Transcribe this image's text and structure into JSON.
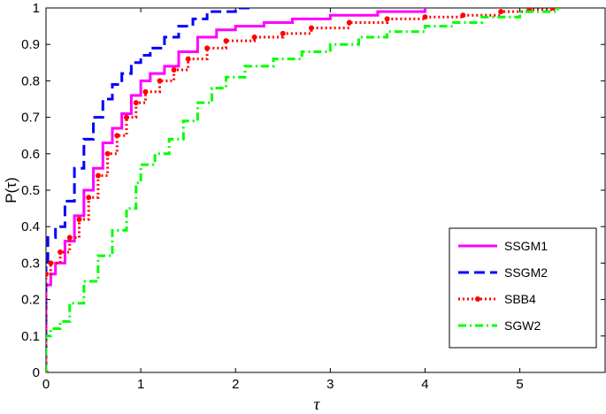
{
  "chart_data": {
    "type": "line",
    "title": "",
    "xlabel": "τ",
    "ylabel": "P(τ)",
    "xlim": [
      0,
      5.9
    ],
    "ylim": [
      0,
      1
    ],
    "xticks": [
      "0",
      "1",
      "2",
      "3",
      "4",
      "5"
    ],
    "yticks": [
      "0",
      "0.1",
      "0.2",
      "0.3",
      "0.4",
      "0.5",
      "0.6",
      "0.7",
      "0.8",
      "0.9",
      "1"
    ],
    "grid": false,
    "legend_position": "bottom-right",
    "series": [
      {
        "name": "SSGM1",
        "color": "#ff00ff",
        "style": "solid",
        "points": [
          [
            0,
            0
          ],
          [
            0,
            0.24
          ],
          [
            0.05,
            0.27
          ],
          [
            0.1,
            0.3
          ],
          [
            0.2,
            0.36
          ],
          [
            0.3,
            0.43
          ],
          [
            0.4,
            0.5
          ],
          [
            0.5,
            0.56
          ],
          [
            0.6,
            0.63
          ],
          [
            0.7,
            0.67
          ],
          [
            0.8,
            0.71
          ],
          [
            0.9,
            0.76
          ],
          [
            1.0,
            0.8
          ],
          [
            1.1,
            0.82
          ],
          [
            1.25,
            0.84
          ],
          [
            1.4,
            0.88
          ],
          [
            1.6,
            0.92
          ],
          [
            1.8,
            0.94
          ],
          [
            2.0,
            0.95
          ],
          [
            2.3,
            0.96
          ],
          [
            2.6,
            0.97
          ],
          [
            3.0,
            0.98
          ],
          [
            3.5,
            0.99
          ],
          [
            4.0,
            1.0
          ]
        ]
      },
      {
        "name": "SSGM2",
        "color": "#0000ff",
        "style": "dashed",
        "points": [
          [
            0,
            0
          ],
          [
            0,
            0.3
          ],
          [
            0.02,
            0.37
          ],
          [
            0.1,
            0.4
          ],
          [
            0.2,
            0.47
          ],
          [
            0.3,
            0.56
          ],
          [
            0.4,
            0.64
          ],
          [
            0.5,
            0.7
          ],
          [
            0.6,
            0.75
          ],
          [
            0.7,
            0.79
          ],
          [
            0.8,
            0.82
          ],
          [
            0.9,
            0.85
          ],
          [
            1.0,
            0.87
          ],
          [
            1.1,
            0.89
          ],
          [
            1.25,
            0.92
          ],
          [
            1.4,
            0.95
          ],
          [
            1.55,
            0.97
          ],
          [
            1.7,
            0.99
          ],
          [
            2.0,
            1.0
          ],
          [
            2.15,
            1.0
          ]
        ]
      },
      {
        "name": "SBB4",
        "color": "#ff0000",
        "style": "dotted-markers",
        "points": [
          [
            0,
            0
          ],
          [
            0,
            0.27
          ],
          [
            0.05,
            0.3
          ],
          [
            0.15,
            0.33
          ],
          [
            0.25,
            0.37
          ],
          [
            0.35,
            0.42
          ],
          [
            0.45,
            0.48
          ],
          [
            0.55,
            0.54
          ],
          [
            0.65,
            0.6
          ],
          [
            0.75,
            0.65
          ],
          [
            0.85,
            0.7
          ],
          [
            0.95,
            0.74
          ],
          [
            1.05,
            0.77
          ],
          [
            1.2,
            0.8
          ],
          [
            1.35,
            0.83
          ],
          [
            1.5,
            0.86
          ],
          [
            1.7,
            0.89
          ],
          [
            1.9,
            0.91
          ],
          [
            2.2,
            0.92
          ],
          [
            2.5,
            0.93
          ],
          [
            2.8,
            0.945
          ],
          [
            3.2,
            0.96
          ],
          [
            3.6,
            0.97
          ],
          [
            4.0,
            0.975
          ],
          [
            4.4,
            0.98
          ],
          [
            4.8,
            0.99
          ],
          [
            5.1,
            0.995
          ],
          [
            5.35,
            1.0
          ]
        ]
      },
      {
        "name": "SGW2",
        "color": "#00ff00",
        "style": "dash-dot",
        "points": [
          [
            0,
            0
          ],
          [
            0,
            0.1
          ],
          [
            0.05,
            0.12
          ],
          [
            0.15,
            0.14
          ],
          [
            0.25,
            0.19
          ],
          [
            0.4,
            0.25
          ],
          [
            0.55,
            0.32
          ],
          [
            0.7,
            0.39
          ],
          [
            0.85,
            0.45
          ],
          [
            0.95,
            0.52
          ],
          [
            1.0,
            0.57
          ],
          [
            1.15,
            0.6
          ],
          [
            1.3,
            0.64
          ],
          [
            1.45,
            0.69
          ],
          [
            1.6,
            0.74
          ],
          [
            1.75,
            0.78
          ],
          [
            1.9,
            0.81
          ],
          [
            2.1,
            0.84
          ],
          [
            2.4,
            0.86
          ],
          [
            2.7,
            0.88
          ],
          [
            3.0,
            0.9
          ],
          [
            3.3,
            0.92
          ],
          [
            3.6,
            0.935
          ],
          [
            4.0,
            0.95
          ],
          [
            4.3,
            0.96
          ],
          [
            4.6,
            0.975
          ],
          [
            5.0,
            0.99
          ],
          [
            5.4,
            1.0
          ]
        ]
      }
    ]
  }
}
